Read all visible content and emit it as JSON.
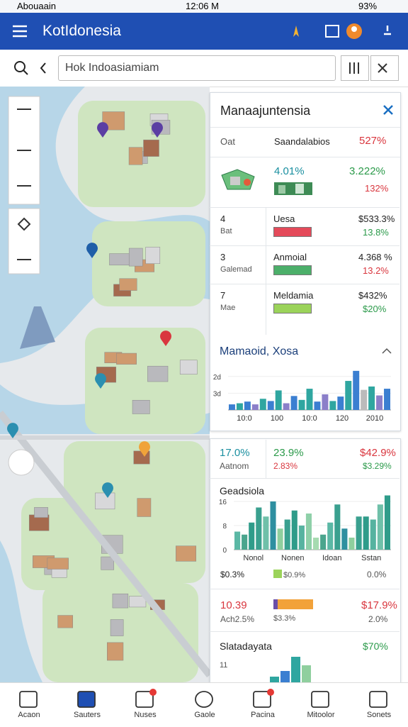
{
  "status": {
    "carrier": "Abouaain",
    "time": "12:06 M",
    "battery": "93%"
  },
  "header": {
    "title": "KotIdonesia"
  },
  "search": {
    "placeholder": "Hok Indoasiamiam"
  },
  "panel1": {
    "title": "Manaajuntensia",
    "rows": [
      [
        "Oat",
        "Saandalabios",
        "527%"
      ],
      [
        "4.01%",
        "3.222%",
        "132%"
      ],
      [
        "4",
        "Bat",
        "Uesa",
        "$533.3%",
        "13.8%"
      ],
      [
        "3",
        "Galemad",
        "Anmoial",
        "4.368 %",
        "13.2%"
      ],
      [
        "7",
        "Mae",
        "Meldamia",
        "$432%",
        "$20%"
      ]
    ],
    "chart": {
      "type": "bar",
      "title": "Mamaoid, Xosa",
      "ylim": [
        0,
        8
      ],
      "yticks": [
        {
          "value": 3,
          "label": "3d"
        },
        {
          "value": 6,
          "label": "2d"
        }
      ],
      "x_labels": [
        "10:0",
        "100",
        "10:0",
        "120",
        "2010"
      ],
      "values": [
        1,
        1.2,
        1.5,
        1,
        2,
        1.6,
        3.5,
        1.2,
        2.5,
        1.8,
        3.8,
        1.5,
        2.8,
        1.6,
        2.4,
        5.2,
        7,
        3.6,
        4.2,
        2.6,
        3.8
      ],
      "colors": [
        "#3b7fd1",
        "#2fa6a0",
        "#3b7fd1",
        "#8b7fc9",
        "#2fa6a0",
        "#3b7fd1",
        "#2fa6a0",
        "#8b7fc9",
        "#3b7fd1",
        "#2fa6a0",
        "#2fa6a0",
        "#3b7fd1",
        "#8b7fc9",
        "#2fa6a0",
        "#3b7fd1",
        "#2fa6a0",
        "#3b7fd1",
        "#bbb",
        "#2fa6a0",
        "#8b7fc9",
        "#3b7fd1"
      ]
    }
  },
  "panel2": {
    "stats": [
      [
        "17.0%",
        "Aatnom"
      ],
      [
        "23.9%",
        "2.83%"
      ],
      [
        "$42.9%",
        "$3.29%"
      ]
    ],
    "chart": {
      "type": "bar",
      "title": "Geadsiola",
      "ylim": [
        0,
        20
      ],
      "yticks": [
        0,
        8,
        16
      ],
      "x_labels": [
        "Nonol",
        "Nonen",
        "Idoan",
        "Sstan"
      ],
      "values": [
        6,
        5,
        9,
        14,
        11,
        16,
        7,
        10,
        13,
        8,
        12,
        4,
        5,
        9,
        15,
        7,
        4,
        11,
        11,
        10,
        15,
        18
      ],
      "colors": [
        "#5bb8a5",
        "#4aa58d",
        "#2f9c8a",
        "#3aa08f",
        "#6fc0a9",
        "#2e8fa0",
        "#8fcf9e",
        "#3aa08f",
        "#2f9c8a",
        "#56b3a0",
        "#8fd0a9",
        "#a6dbb0",
        "#4aa58d",
        "#5bb8a5",
        "#3aa08f",
        "#2e8fa0",
        "#8fcf9e",
        "#3aa08f",
        "#2f9c8a",
        "#56b3a0",
        "#6fc0a9",
        "#2f9c8a"
      ]
    },
    "rows": [
      [
        "$0.3%",
        "$0.9%",
        "0.0%"
      ],
      [
        "10.39",
        "Ach2.5%",
        "$3.3%",
        "$17.9%",
        "2.0%"
      ]
    ],
    "mini": {
      "title": "Slatadayata",
      "value": "$70%",
      "label": "11",
      "type": "bar",
      "ylim": [
        0,
        10
      ],
      "values": [
        2,
        4,
        9,
        6
      ],
      "colors": [
        "#2fa6a0",
        "#3b7fd1",
        "#2fa6a0",
        "#8fcf9e"
      ]
    }
  },
  "nav": [
    "Acaon",
    "Sauters",
    "Nuses",
    "Gaole",
    "Pacina",
    "Mitoolor",
    "Sonets"
  ]
}
